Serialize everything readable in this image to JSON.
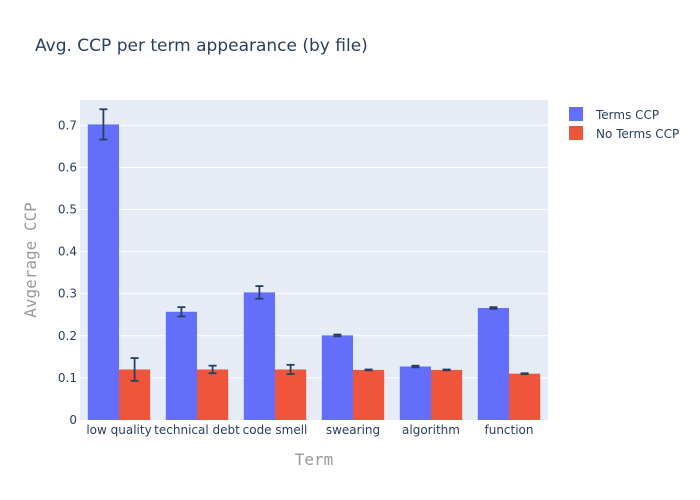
{
  "chart_data": {
    "type": "bar",
    "title": "Avg. CCP per term appearance (by file)",
    "xlabel": "Term",
    "ylabel": "Avgerage CCP",
    "categories": [
      "low quality",
      "technical debt",
      "code smell",
      "swearing",
      "algorithm",
      "function"
    ],
    "ylim": [
      0,
      0.76
    ],
    "yticks": [
      0,
      0.1,
      0.2,
      0.3,
      0.4,
      0.5,
      0.6,
      0.7
    ],
    "ytick_labels": [
      "0",
      "0.1",
      "0.2",
      "0.3",
      "0.4",
      "0.5",
      "0.6",
      "0.7"
    ],
    "grid": true,
    "legend_position": "top-right",
    "series": [
      {
        "name": "Terms CCP",
        "color": "#636efa",
        "values": [
          0.702,
          0.257,
          0.303,
          0.201,
          0.127,
          0.266
        ],
        "error": [
          0.036,
          0.011,
          0.015,
          0.002,
          0.002,
          0.002
        ]
      },
      {
        "name": "No Terms CCP",
        "color": "#ef553b",
        "values": [
          0.12,
          0.12,
          0.12,
          0.119,
          0.119,
          0.11
        ],
        "error": [
          0.027,
          0.009,
          0.011,
          0.001,
          0.001,
          0.001
        ]
      }
    ]
  }
}
